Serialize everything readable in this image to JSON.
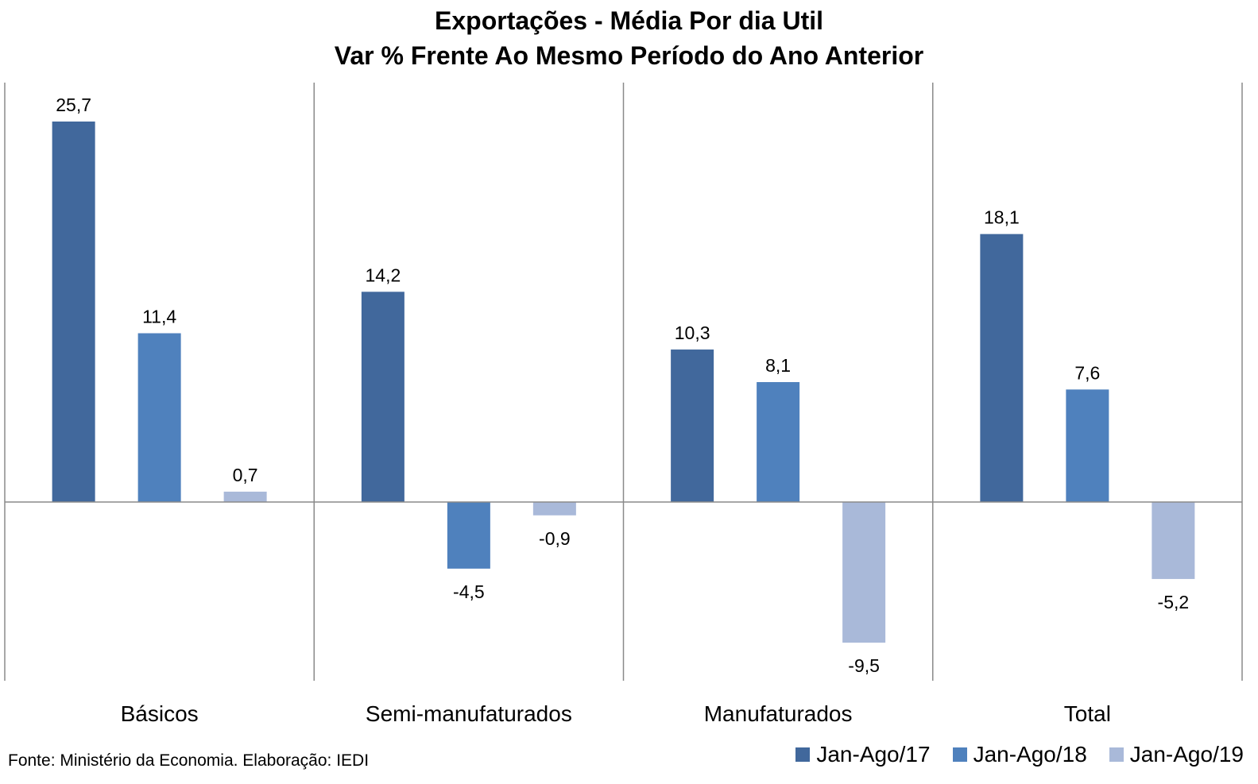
{
  "title_line1": "Exportações - Média Por dia Util",
  "title_line2": "Var % Frente Ao Mesmo Período do Ano Anterior",
  "source": "Fonte: Ministério da Economia. Elaboração: IEDI",
  "colors": {
    "series": [
      "#41689C",
      "#4F81BD",
      "#A9B9D9"
    ],
    "axis": "#8A8A8A"
  },
  "chart_data": {
    "type": "bar",
    "title": "Exportações - Média Por dia Util / Var % Frente Ao Mesmo Período do Ano Anterior",
    "categories": [
      "Básicos",
      "Semi-manufaturados",
      "Manufaturados",
      "Total"
    ],
    "series": [
      {
        "name": "Jan-Ago/17",
        "values": [
          25.7,
          14.2,
          10.3,
          18.1
        ],
        "labels": [
          "25,7",
          "14,2",
          "10,3",
          "18,1"
        ]
      },
      {
        "name": "Jan-Ago/18",
        "values": [
          11.4,
          -4.5,
          8.1,
          7.6
        ],
        "labels": [
          "11,4",
          "-4,5",
          "8,1",
          "7,6"
        ]
      },
      {
        "name": "Jan-Ago/19",
        "values": [
          0.7,
          -0.9,
          -9.5,
          -5.2
        ],
        "labels": [
          "0,7",
          "-0,9",
          "-9,5",
          "-5,2"
        ]
      }
    ],
    "xlabel": "",
    "ylabel": "",
    "ylim": [
      -12,
      28
    ],
    "grid": false,
    "legend": "bottom-right",
    "data_labels": true
  }
}
